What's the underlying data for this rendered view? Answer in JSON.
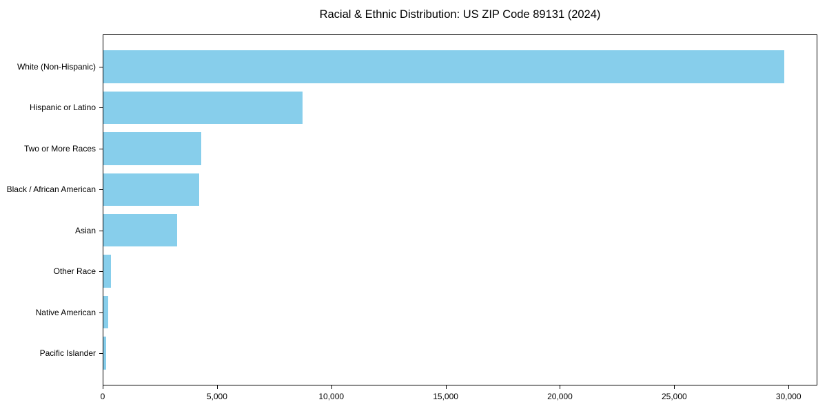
{
  "chart_data": {
    "type": "bar",
    "orientation": "horizontal",
    "title": "Racial & Ethnic Distribution: US ZIP Code 89131 (2024)",
    "categories": [
      "White (Non-Hispanic)",
      "Hispanic or Latino",
      "Two or More Races",
      "Black / African American",
      "Asian",
      "Other Race",
      "Native American",
      "Pacific Islander"
    ],
    "values": [
      29770,
      8700,
      4270,
      4200,
      3230,
      330,
      210,
      120
    ],
    "xlabel": "",
    "ylabel": "",
    "xlim": [
      0,
      31260
    ],
    "x_ticks": [
      0,
      5000,
      10000,
      15000,
      20000,
      25000,
      30000
    ],
    "x_tick_labels": [
      "0",
      "5,000",
      "10,000",
      "15,000",
      "20,000",
      "25,000",
      "30,000"
    ],
    "bar_color": "#87CEEB",
    "text_color": "#000000",
    "grid": false,
    "legend": null
  }
}
